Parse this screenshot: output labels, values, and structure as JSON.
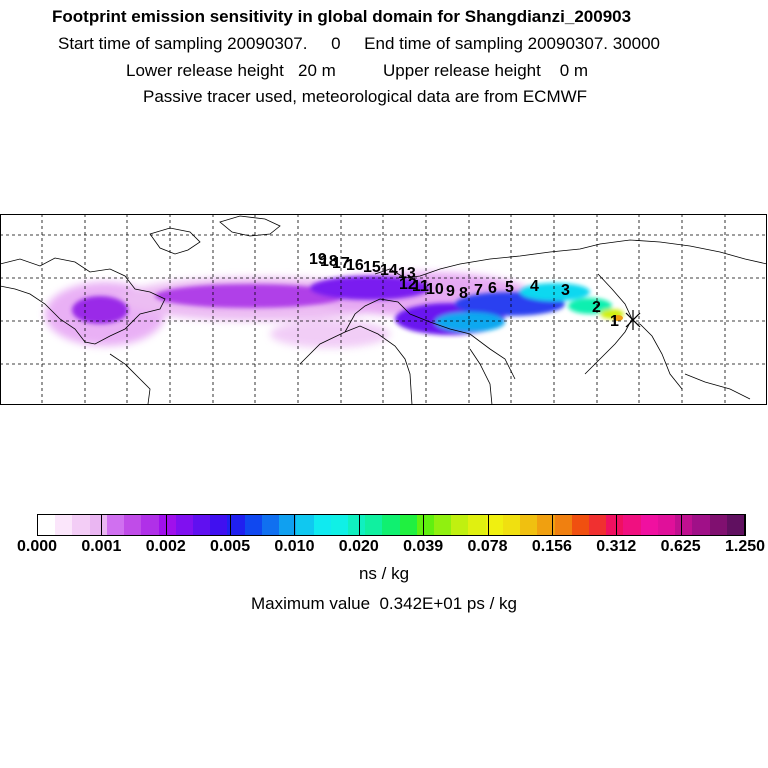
{
  "header": {
    "title": "Footprint emission sensitivity in global domain for Shangdianzi_200903",
    "sampling": "Start time of sampling 20090307.     0     End time of sampling 20090307. 30000",
    "heights": "Lower release height   20 m          Upper release height    0 m",
    "tracer": "Passive tracer used, meteorological data are from ECMWF"
  },
  "map": {
    "trajectory_labels": [
      "1",
      "2",
      "3",
      "4",
      "5",
      "6",
      "7",
      "8",
      "9",
      "10",
      "11",
      "12",
      "13",
      "14",
      "15",
      "16",
      "17",
      "18",
      "19"
    ],
    "receptor_marker": "x"
  },
  "colorbar": {
    "tick_labels": [
      "0.000",
      "0.001",
      "0.002",
      "0.005",
      "0.010",
      "0.020",
      "0.039",
      "0.078",
      "0.156",
      "0.312",
      "0.625",
      "1.250"
    ],
    "colors": [
      "#ffffff",
      "#fbe6fb",
      "#f3cdf6",
      "#eab6f2",
      "#d070f0",
      "#c04ce8",
      "#b030e8",
      "#a010ec",
      "#8010f0",
      "#6010f0",
      "#4010f0",
      "#2020f0",
      "#1048f0",
      "#1070f0",
      "#10a0f0",
      "#10c8f0",
      "#10eaf0",
      "#10f0e6",
      "#10f0c0",
      "#10f0a0",
      "#10f070",
      "#20f040",
      "#60f010",
      "#90f010",
      "#c0f010",
      "#e0f010",
      "#f0f010",
      "#f0e010",
      "#f0c010",
      "#f0a010",
      "#f08010",
      "#f05010",
      "#f03030",
      "#f01060",
      "#f01080",
      "#f010a0",
      "#e0109a",
      "#c01090",
      "#a01088",
      "#801070",
      "#601060"
    ],
    "unit": "ns / kg",
    "max_label": "Maximum value  0.342E+01 ps / kg"
  },
  "colors": {
    "background": "#ffffff",
    "frame": "#000000",
    "grid": "#000000"
  }
}
